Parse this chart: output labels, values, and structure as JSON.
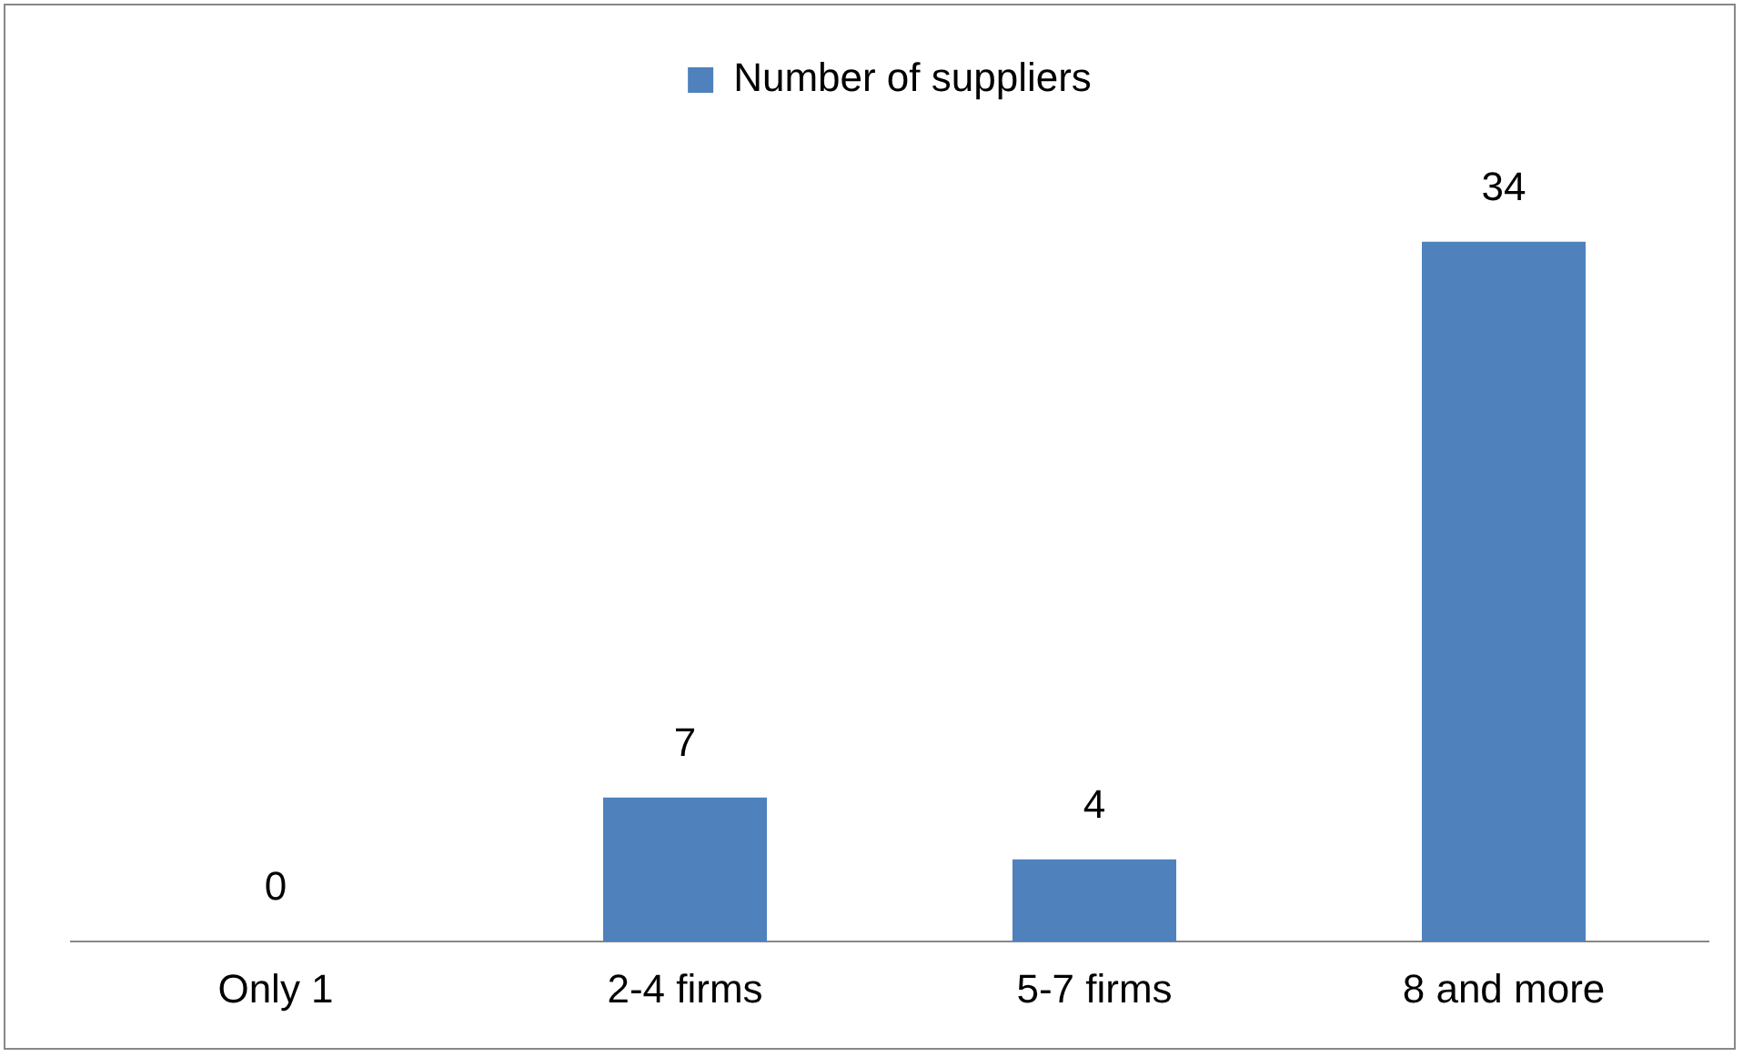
{
  "chart_data": {
    "type": "bar",
    "categories": [
      "Only 1",
      "2-4 firms",
      "5-7 firms",
      "8 and more"
    ],
    "series": [
      {
        "name": "Number of suppliers",
        "color": "#4f81bd",
        "values": [
          0,
          7,
          4,
          34
        ]
      }
    ],
    "data_labels": true,
    "legend": "top",
    "grid": false
  }
}
